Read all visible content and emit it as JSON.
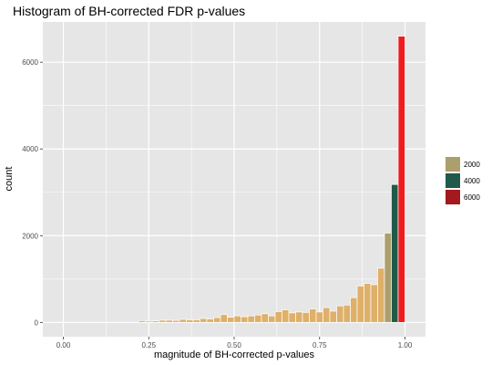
{
  "chart_data": {
    "type": "bar",
    "title": "Histogram of BH-corrected FDR p-values",
    "xlabel": "magnitude of BH-corrected p-values",
    "ylabel": "count",
    "xlim": [
      -0.06,
      1.06
    ],
    "ylim": [
      -330,
      6930
    ],
    "x_ticks": [
      0.0,
      0.25,
      0.5,
      0.75,
      1.0
    ],
    "x_tick_labels": [
      "0.00",
      "0.25",
      "0.50",
      "0.75",
      "1.00"
    ],
    "y_ticks": [
      0,
      2000,
      4000,
      6000
    ],
    "y_tick_labels": [
      "0",
      "2000",
      "4000",
      "6000"
    ],
    "bin_width": 0.02,
    "bin_starts": [
      0.02,
      0.04,
      0.06,
      0.08,
      0.1,
      0.12,
      0.14,
      0.16,
      0.18,
      0.2,
      0.22,
      0.24,
      0.26,
      0.28,
      0.3,
      0.32,
      0.34,
      0.36,
      0.38,
      0.4,
      0.42,
      0.44,
      0.46,
      0.48,
      0.5,
      0.52,
      0.54,
      0.56,
      0.58,
      0.6,
      0.62,
      0.64,
      0.66,
      0.68,
      0.7,
      0.72,
      0.74,
      0.76,
      0.78,
      0.8,
      0.82,
      0.84,
      0.86,
      0.88,
      0.9,
      0.92,
      0.94,
      0.96,
      0.98
    ],
    "values": [
      40,
      30,
      35,
      50,
      50,
      45,
      70,
      60,
      60,
      90,
      80,
      110,
      180,
      120,
      150,
      130,
      150,
      170,
      200,
      150,
      250,
      290,
      220,
      240,
      230,
      310,
      240,
      340,
      260,
      380,
      400,
      570,
      840,
      900,
      870,
      1250,
      2060,
      3180,
      6600
    ],
    "value_bin_offset": 10,
    "bar_colors": {
      "default": "#deb06a",
      "by_value": [
        {
          "min": 2000,
          "max": 3000,
          "color": "#ad9e6d"
        },
        {
          "min": 3000,
          "max": 5000,
          "color": "#1f5a4a"
        },
        {
          "min": 5000,
          "max": 99999,
          "color": "#ee1c1c"
        }
      ]
    },
    "bar_outline": "#ffffff",
    "panel_background": "#e6e6e6",
    "grid": true,
    "grid_color": "#ffffff",
    "legend": {
      "placement": "right",
      "entries": [
        {
          "label": "2000",
          "color": "#ad9e6d"
        },
        {
          "label": "4000",
          "color": "#1f5a4a"
        },
        {
          "label": "6000",
          "color": "#a3191d"
        }
      ]
    }
  }
}
